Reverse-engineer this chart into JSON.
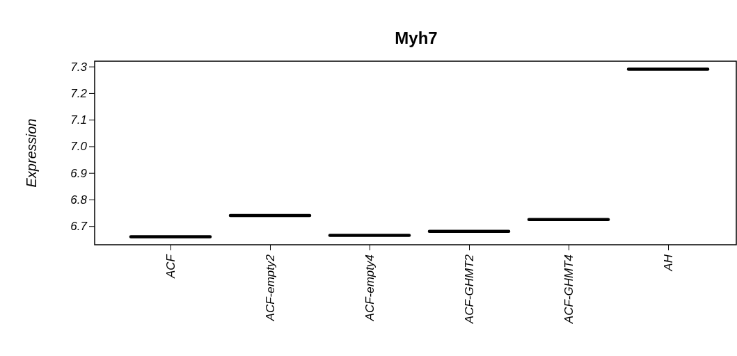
{
  "chart_data": {
    "type": "box",
    "title": "Myh7",
    "ylabel": "Expression",
    "categories": [
      "ACF",
      "ACF-empty2",
      "ACF-empty4",
      "ACF-GHMT2",
      "ACF-GHMT4",
      "AH"
    ],
    "boxes": [
      {
        "low": 6.66,
        "q1": 6.66,
        "median": 6.66,
        "q3": 6.66,
        "high": 6.66
      },
      {
        "low": 6.74,
        "q1": 6.74,
        "median": 6.74,
        "q3": 6.74,
        "high": 6.74
      },
      {
        "low": 6.665,
        "q1": 6.665,
        "median": 6.665,
        "q3": 6.665,
        "high": 6.665
      },
      {
        "low": 6.68,
        "q1": 6.68,
        "median": 6.68,
        "q3": 6.68,
        "high": 6.68
      },
      {
        "low": 6.725,
        "q1": 6.725,
        "median": 6.725,
        "q3": 6.725,
        "high": 6.725
      },
      {
        "low": 7.29,
        "q1": 7.29,
        "median": 7.29,
        "q3": 7.29,
        "high": 7.29
      }
    ],
    "ylim": [
      6.63,
      7.32
    ],
    "yticks": [
      6.7,
      6.8,
      6.9,
      {
        "value": 7,
        "label": "7.0"
      },
      7.1,
      7.2,
      7.3
    ]
  }
}
